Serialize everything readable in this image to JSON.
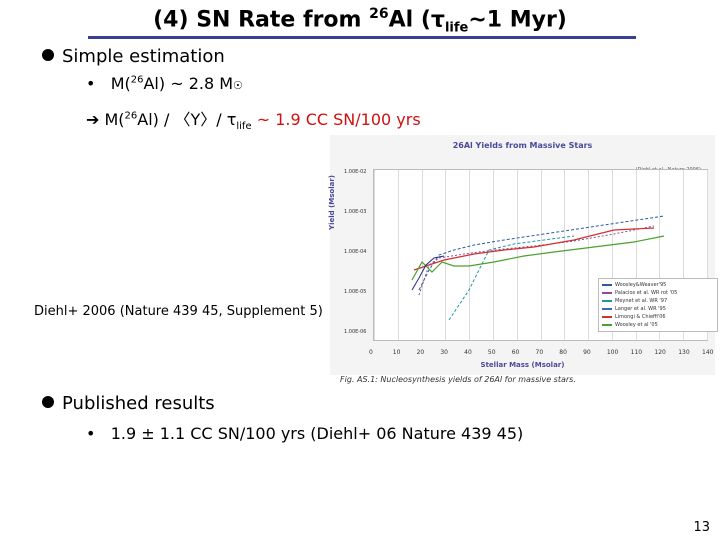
{
  "title": {
    "prefix": "(4) SN Rate from ",
    "sup": "26",
    "main": "Al (τ",
    "sub": "life",
    "suffix": "~1 Myr)"
  },
  "bullet1": {
    "label": "Simple estimation"
  },
  "line1": {
    "marker": "•",
    "a": "M(",
    "sup": "26",
    "b": "Al) ~ 2.8 M",
    "sun": "☉"
  },
  "line2": {
    "arrow": "➔",
    "a": " M(",
    "sup": "26",
    "b": "Al) / 〈Y〉/ τ",
    "sub": "life",
    "c": " ~ 1.9 CC SN/100 yrs"
  },
  "figure": {
    "title": "26Al Yields from Massive Stars",
    "corner": "(Diehl et al., Nature 2006)",
    "ylabel": "Yield (Msolar)",
    "xlabel": "Stellar Mass (Msolar)",
    "yticks": [
      "1.00E-02",
      "1.00E-03",
      "1.00E-04",
      "1.00E-05",
      "1.00E-06"
    ],
    "xticks": [
      "0",
      "10",
      "20",
      "30",
      "40",
      "50",
      "60",
      "70",
      "80",
      "90",
      "100",
      "110",
      "120",
      "130",
      "140"
    ],
    "caption": "Fig. AS.1: Nucleosynthesis yields of 26Al for massive stars.",
    "legend": [
      {
        "label": "Woosley&Weaver'95",
        "color": "#2a5aa0"
      },
      {
        "label": "Palacios et al. WR rot '05",
        "color": "#8b4a9a"
      },
      {
        "label": "Meynet et al. WR '97",
        "color": "#1a9a9a"
      },
      {
        "label": "Langer et al. WR '95",
        "color": "#3a6ac0"
      },
      {
        "label": "Limongi & Chieffi'06",
        "color": "#d03030"
      },
      {
        "label": "Woosley et al '05",
        "color": "#4aa030"
      }
    ]
  },
  "diehl_label": "Diehl+ 2006 (Nature 439 45, Supplement 5)",
  "bullet2": {
    "label": "Published results"
  },
  "line3": {
    "marker": "•",
    "text": "1.9 ± 1.1 CC SN/100 yrs (Diehl+ 06 Nature 439 45)"
  },
  "page_number": "13"
}
